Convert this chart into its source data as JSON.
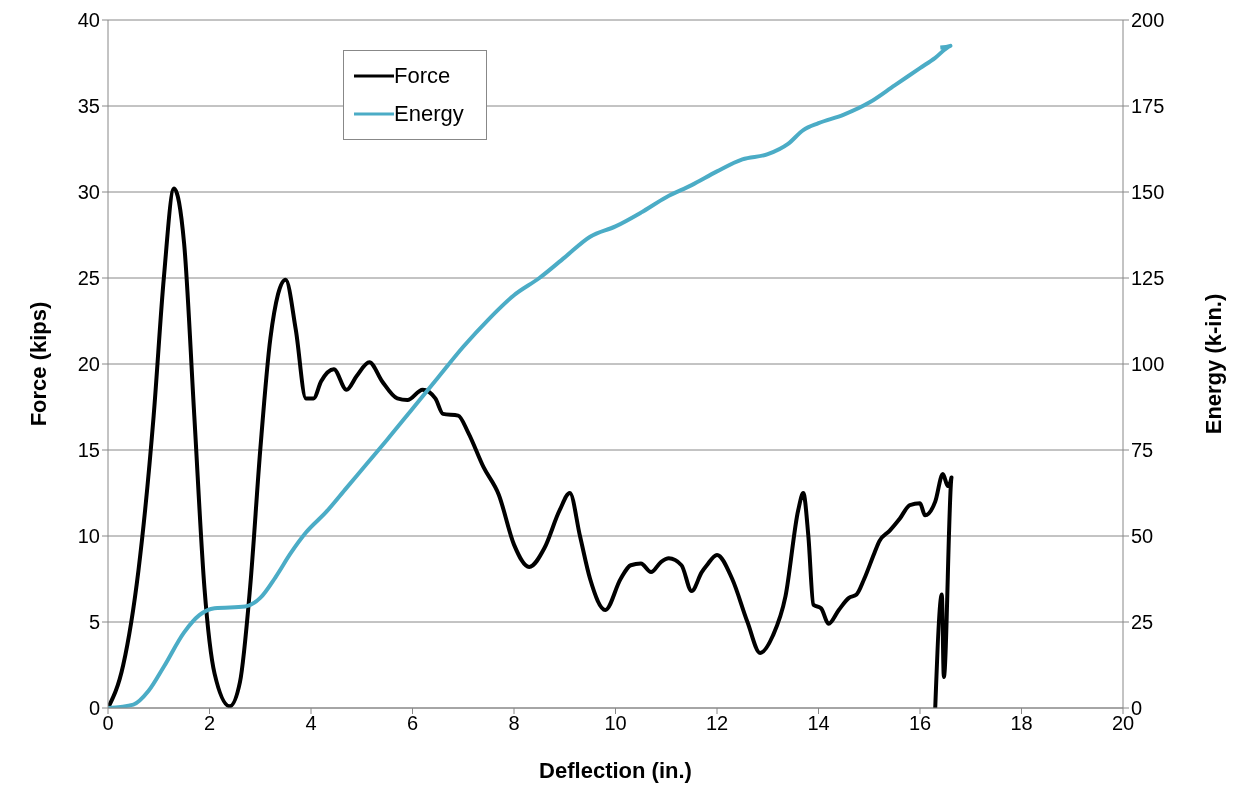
{
  "chart_data": {
    "type": "line",
    "xlabel": "Deflection (in.)",
    "ylabel": "Force  (kips)",
    "y2label": "Energy  (k-in.)",
    "xlim": [
      0,
      20
    ],
    "xticks": [
      0,
      2,
      4,
      6,
      8,
      10,
      12,
      14,
      16,
      18,
      20
    ],
    "ylim": [
      0,
      40
    ],
    "yticks": [
      0,
      5,
      10,
      15,
      20,
      25,
      30,
      35,
      40
    ],
    "y2lim": [
      0,
      200
    ],
    "y2ticks": [
      0,
      25,
      50,
      75,
      100,
      125,
      150,
      175,
      200
    ],
    "grid": "y",
    "legend": "top left",
    "marker": "none",
    "line_style": "solid",
    "series": [
      {
        "name": "Force",
        "color": "#000000",
        "x": [
          0,
          0.3,
          0.6,
          0.9,
          1.1,
          1.3,
          1.5,
          1.7,
          1.9,
          2.1,
          2.4,
          2.6,
          2.8,
          3.0,
          3.2,
          3.5,
          3.7,
          3.9,
          4.05,
          4.2,
          4.45,
          4.7,
          4.9,
          5.15,
          5.4,
          5.7,
          5.9,
          6.2,
          6.45,
          6.6,
          6.9,
          7.1,
          7.4,
          7.7,
          8.0,
          8.3,
          8.6,
          8.9,
          9.1,
          9.3,
          9.5,
          9.8,
          10.1,
          10.3,
          10.5,
          10.7,
          10.9,
          11.05,
          11.3,
          11.5,
          11.7,
          11.8,
          12.0,
          12.3,
          12.6,
          12.85,
          13.1,
          13.35,
          13.6,
          13.7,
          13.8,
          13.9,
          14.05,
          14.2,
          14.4,
          14.6,
          14.75,
          14.9,
          15.1,
          15.2,
          15.4,
          15.6,
          15.8,
          16.0,
          16.1,
          16.3,
          16.45,
          16.55,
          16.62,
          16.47,
          16.43,
          16.3
        ],
        "values": [
          0,
          2.5,
          8,
          17,
          25,
          30.2,
          27,
          17,
          7,
          2,
          0.1,
          1.5,
          7,
          15,
          21.5,
          24.9,
          22,
          18,
          18,
          19,
          19.7,
          18.5,
          19.3,
          20.1,
          19,
          18,
          17.9,
          18.5,
          18,
          17.1,
          17,
          16,
          14,
          12.4,
          9.5,
          8.2,
          9.3,
          11.5,
          12.5,
          10,
          7.5,
          5.7,
          7.5,
          8.3,
          8.4,
          7.9,
          8.5,
          8.7,
          8.3,
          6.8,
          7.9,
          8.3,
          8.9,
          7.5,
          5,
          3.2,
          4.2,
          6.5,
          11.5,
          12.5,
          10,
          6,
          5.8,
          4.9,
          5.7,
          6.4,
          6.6,
          7.5,
          9,
          9.7,
          10.3,
          11,
          11.8,
          11.9,
          11.2,
          12,
          13.6,
          12.9,
          13.4,
          1.8,
          6.6,
          0
        ]
      },
      {
        "name": "Energy",
        "color": "#4bacc6",
        "axis": "y2",
        "x": [
          0,
          0.5,
          0.8,
          1.1,
          1.5,
          1.8,
          2.1,
          2.7,
          3.0,
          3.3,
          3.6,
          3.9,
          4.3,
          4.7,
          5.1,
          5.5,
          6.0,
          6.5,
          7.0,
          7.5,
          8.0,
          8.5,
          9.0,
          9.5,
          10.0,
          10.5,
          11.0,
          11.5,
          12.0,
          12.5,
          13.0,
          13.4,
          13.7,
          14.0,
          14.5,
          15.0,
          15.5,
          16.0,
          16.3,
          16.6,
          16.4
        ],
        "values": [
          0,
          1,
          5,
          12,
          22,
          27,
          29,
          29.5,
          32,
          38,
          45,
          51,
          57,
          64,
          71,
          78,
          87,
          96,
          105,
          113,
          120,
          125,
          131,
          137,
          140,
          144,
          148.5,
          152,
          156,
          159.5,
          161,
          164,
          168,
          170,
          172.5,
          176,
          181,
          186,
          189,
          192.5,
          192
        ]
      }
    ]
  }
}
